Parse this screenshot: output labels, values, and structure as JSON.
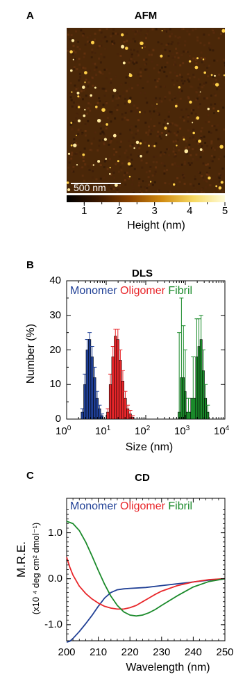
{
  "afm": {
    "letter": "A",
    "title": "AFM",
    "scalebar_label": "500 nm",
    "colorbar": {
      "ticks": [
        "1",
        "2",
        "3",
        "4",
        "5"
      ],
      "label": "Height (nm)",
      "range": [
        0.5,
        5
      ],
      "colors": [
        "#000000",
        "#3a1800",
        "#8a4300",
        "#d08a10",
        "#f6d860",
        "#fffbd8"
      ]
    },
    "image_colors": {
      "background": "#4a2708",
      "particle": "#ffd14a"
    }
  },
  "dls": {
    "letter": "B",
    "title": "DLS",
    "legend": [
      {
        "label": "Monomer",
        "color": "#1f3f95"
      },
      {
        "label": "Oligomer",
        "color": "#e8262a"
      },
      {
        "label": "Fibril",
        "color": "#1a8a2a"
      }
    ],
    "y_ticks": [
      "0",
      "10",
      "20",
      "30",
      "40"
    ],
    "x_ticks": [
      {
        "base": "10",
        "exp": "0"
      },
      {
        "base": "10",
        "exp": "1"
      },
      {
        "base": "10",
        "exp": "2"
      },
      {
        "base": "10",
        "exp": "3"
      },
      {
        "base": "10",
        "exp": "4"
      }
    ],
    "ylabel": "Number (%)",
    "xlabel": "Size (nm)"
  },
  "cd": {
    "letter": "C",
    "title": "CD",
    "legend": [
      {
        "label": "Monomer",
        "color": "#1f3f95"
      },
      {
        "label": "Oligomer",
        "color": "#e8262a"
      },
      {
        "label": "Fibril",
        "color": "#1a8a2a"
      }
    ],
    "y_ticks": [
      "1.0",
      "0.0",
      "-1.0"
    ],
    "x_ticks": [
      "200",
      "210",
      "220",
      "230",
      "240",
      "250"
    ],
    "ylabel_main": "M.R.E.",
    "ylabel_units": "(x10 ⁴ deg cm² dmol⁻¹)",
    "xlabel": "Wavelength (nm)"
  },
  "chart_data": [
    {
      "type": "bar",
      "panel": "DLS",
      "xscale": "log",
      "xlim": [
        1,
        10000
      ],
      "ylim": [
        0,
        40
      ],
      "series": [
        {
          "name": "Monomer",
          "color": "#1f3f95",
          "x": [
            2.5,
            2.9,
            3.3,
            3.8,
            4.4,
            5.1,
            5.9,
            6.8,
            7.8
          ],
          "values": [
            2,
            10,
            20,
            23,
            18,
            12,
            6,
            3,
            1
          ],
          "errors": [
            1,
            3,
            3,
            2,
            3,
            3,
            2,
            1,
            0.5
          ]
        },
        {
          "name": "Oligomer",
          "color": "#e8262a",
          "x": [
            11,
            12.8,
            14.8,
            17.1,
            19.7,
            22.8,
            26.3,
            30.4,
            35.1,
            40.6,
            46.9
          ],
          "values": [
            2,
            10,
            18,
            24,
            23,
            17,
            11,
            6,
            3,
            1.5,
            0.5
          ],
          "errors": [
            1,
            3,
            3,
            2,
            3,
            3,
            3,
            2,
            1,
            1,
            0.5
          ]
        },
        {
          "name": "Fibril",
          "color": "#1a8a2a",
          "x": [
            700,
            800,
            900,
            1000,
            1100,
            1700,
            1950,
            2200,
            2500,
            2850,
            3250,
            3700
          ],
          "values": [
            2,
            12,
            12,
            8,
            2,
            6,
            18,
            21,
            23,
            14,
            6,
            2
          ],
          "errors": [
            23,
            23,
            15,
            12,
            4,
            12,
            11,
            8,
            7,
            6,
            4,
            2
          ]
        }
      ]
    },
    {
      "type": "line",
      "panel": "CD",
      "xlim": [
        200,
        250
      ],
      "ylim": [
        -1.35,
        1.75
      ],
      "series": [
        {
          "name": "Monomer",
          "color": "#1f3f95",
          "x": [
            200,
            201,
            202,
            204,
            206,
            208,
            210,
            212,
            214,
            216,
            218,
            220,
            225,
            230,
            235,
            240,
            245,
            250
          ],
          "y": [
            -1.38,
            -1.36,
            -1.3,
            -1.15,
            -0.98,
            -0.8,
            -0.6,
            -0.42,
            -0.3,
            -0.24,
            -0.22,
            -0.21,
            -0.19,
            -0.15,
            -0.11,
            -0.07,
            -0.03,
            0.0
          ]
        },
        {
          "name": "Oligomer",
          "color": "#e8262a",
          "x": [
            200,
            201,
            202,
            204,
            206,
            208,
            210,
            212,
            214,
            216,
            218,
            220,
            222,
            224,
            226,
            228,
            230,
            235,
            240,
            245,
            250
          ],
          "y": [
            0.47,
            0.25,
            0.08,
            -0.16,
            -0.32,
            -0.44,
            -0.53,
            -0.6,
            -0.64,
            -0.66,
            -0.66,
            -0.63,
            -0.58,
            -0.5,
            -0.42,
            -0.34,
            -0.27,
            -0.15,
            -0.07,
            -0.02,
            0.0
          ]
        },
        {
          "name": "Fibril",
          "color": "#1a8a2a",
          "x": [
            200,
            202,
            204,
            206,
            208,
            210,
            212,
            214,
            216,
            218,
            220,
            222,
            224,
            226,
            228,
            230,
            235,
            240,
            245,
            250
          ],
          "y": [
            1.25,
            1.2,
            1.05,
            0.8,
            0.5,
            0.18,
            -0.12,
            -0.38,
            -0.58,
            -0.72,
            -0.79,
            -0.81,
            -0.79,
            -0.74,
            -0.67,
            -0.58,
            -0.37,
            -0.18,
            -0.06,
            0.0
          ]
        }
      ]
    }
  ]
}
